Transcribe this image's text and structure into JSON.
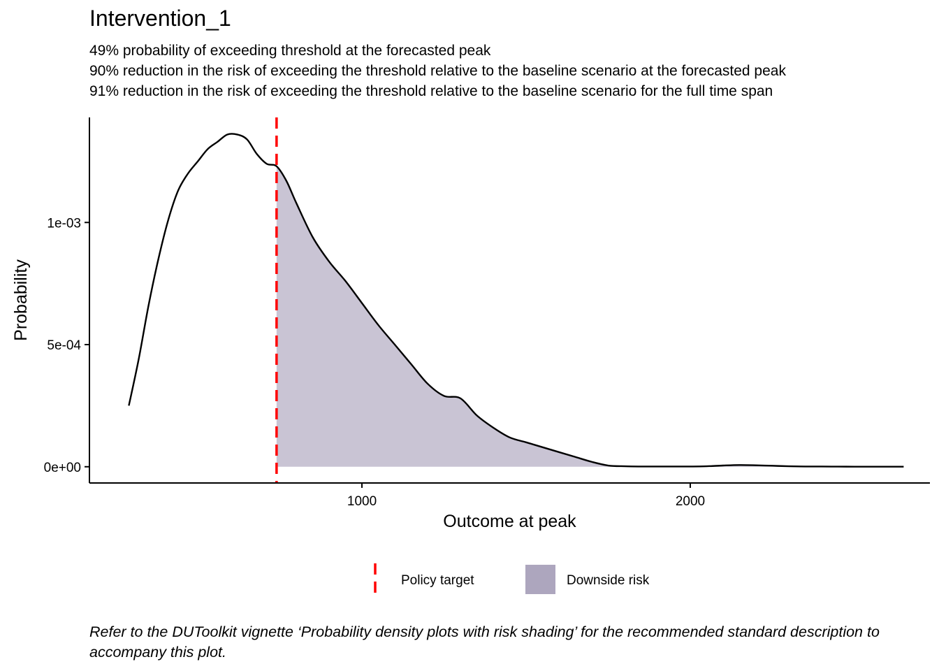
{
  "chart_data": {
    "type": "area",
    "title": "Intervention_1",
    "subtitle": [
      "49% probability of exceeding threshold at the forecasted peak",
      "90% reduction in the risk of exceeding the threshold relative to the baseline scenario at the forecasted peak",
      "91% reduction in the risk of exceeding the threshold relative to the baseline scenario for the full time span"
    ],
    "xlabel": "Outcome at peak",
    "ylabel": "Probability",
    "xlim": [
      170,
      2730
    ],
    "ylim": [
      -6.65e-05,
      0.00143
    ],
    "x_ticks": [
      1000,
      2000
    ],
    "x_tick_labels": [
      "1000",
      "2000"
    ],
    "y_ticks": [
      0,
      0.0005,
      0.001
    ],
    "y_tick_labels": [
      "0e+00",
      "5e-04",
      "1e-03"
    ],
    "grid": false,
    "policy_target": 740,
    "density": {
      "x": [
        290,
        320,
        350,
        380,
        410,
        440,
        470,
        500,
        530,
        560,
        590,
        620,
        650,
        680,
        710,
        740,
        770,
        800,
        850,
        900,
        950,
        1000,
        1050,
        1100,
        1150,
        1200,
        1250,
        1300,
        1350,
        1400,
        1450,
        1500,
        1550,
        1600,
        1650,
        1700,
        1750,
        1800,
        1850,
        1900,
        1950,
        2000,
        2050,
        2100,
        2150,
        2200,
        2250,
        2300,
        2350,
        2400,
        2450,
        2500,
        2550,
        2600,
        2650
      ],
      "y": [
        0.00025,
        0.00044,
        0.00066,
        0.00085,
        0.00101,
        0.00113,
        0.0012,
        0.00125,
        0.0013,
        0.00133,
        0.00136,
        0.00136,
        0.00134,
        0.00128,
        0.00124,
        0.00123,
        0.00117,
        0.00108,
        0.00094,
        0.00084,
        0.00076,
        0.00067,
        0.00058,
        0.0005,
        0.00042,
        0.00034,
        0.00029,
        0.00028,
        0.00021,
        0.00016,
        0.00012,
        0.0001,
        8e-05,
        6e-05,
        4e-05,
        2e-05,
        5e-06,
        2e-06,
        1e-06,
        1e-06,
        1e-06,
        1e-06,
        2e-06,
        5e-06,
        7e-06,
        6e-06,
        4e-06,
        2e-06,
        1e-06,
        1e-06,
        5e-07,
        3e-07,
        2e-07,
        1e-07,
        1e-07
      ]
    },
    "fill_color": "#c9c4d4",
    "legend_fill_color": "#ada6be",
    "line_color": "#000000",
    "policy_color": "#ff0000",
    "legend": {
      "position": "bottom",
      "items": [
        {
          "label": "Policy target",
          "kind": "dashed-line"
        },
        {
          "label": "Downside risk",
          "kind": "fill"
        }
      ]
    }
  },
  "caption": "Refer to the DUToolkit vignette ‘Probability density plots with risk shading’ for the recommended standard description to accompany this plot."
}
